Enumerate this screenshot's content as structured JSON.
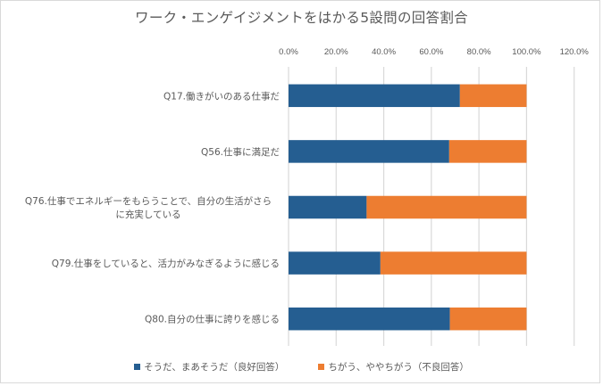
{
  "chart_data": {
    "type": "bar",
    "orientation": "horizontal",
    "stacked": true,
    "title": "ワーク・エンゲイジメントをはかる5設問の回答割合",
    "xlabel": "",
    "ylabel": "",
    "xlim": [
      0,
      120
    ],
    "x_ticks": [
      "0.0%",
      "20.0%",
      "40.0%",
      "60.0%",
      "80.0%",
      "100.0%",
      "120.0%"
    ],
    "x_tick_values": [
      0,
      20,
      40,
      60,
      80,
      100,
      120
    ],
    "x_axis_position": "top",
    "grid": true,
    "categories": [
      [
        "Q17.働きがいのある仕事だ"
      ],
      [
        "Q56.仕事に満足だ"
      ],
      [
        "Q76.仕事でエネルギーをもらうことで、自分の生活がさら",
        "に充実している"
      ],
      [
        "Q79.仕事をしていると、活力がみなぎるように感じる"
      ],
      [
        "Q80.自分の仕事に誇りを感じる"
      ]
    ],
    "series": [
      {
        "name": "そうだ、まあそうだ（良好回答）",
        "color": "#255e91",
        "values": [
          72.0,
          67.5,
          32.8,
          38.6,
          67.8
        ]
      },
      {
        "name": "ちがう、ややちがう（不良回答）",
        "color": "#ed7d31",
        "values": [
          28.0,
          32.5,
          67.2,
          61.4,
          32.2
        ]
      }
    ],
    "legend_position": "bottom"
  }
}
